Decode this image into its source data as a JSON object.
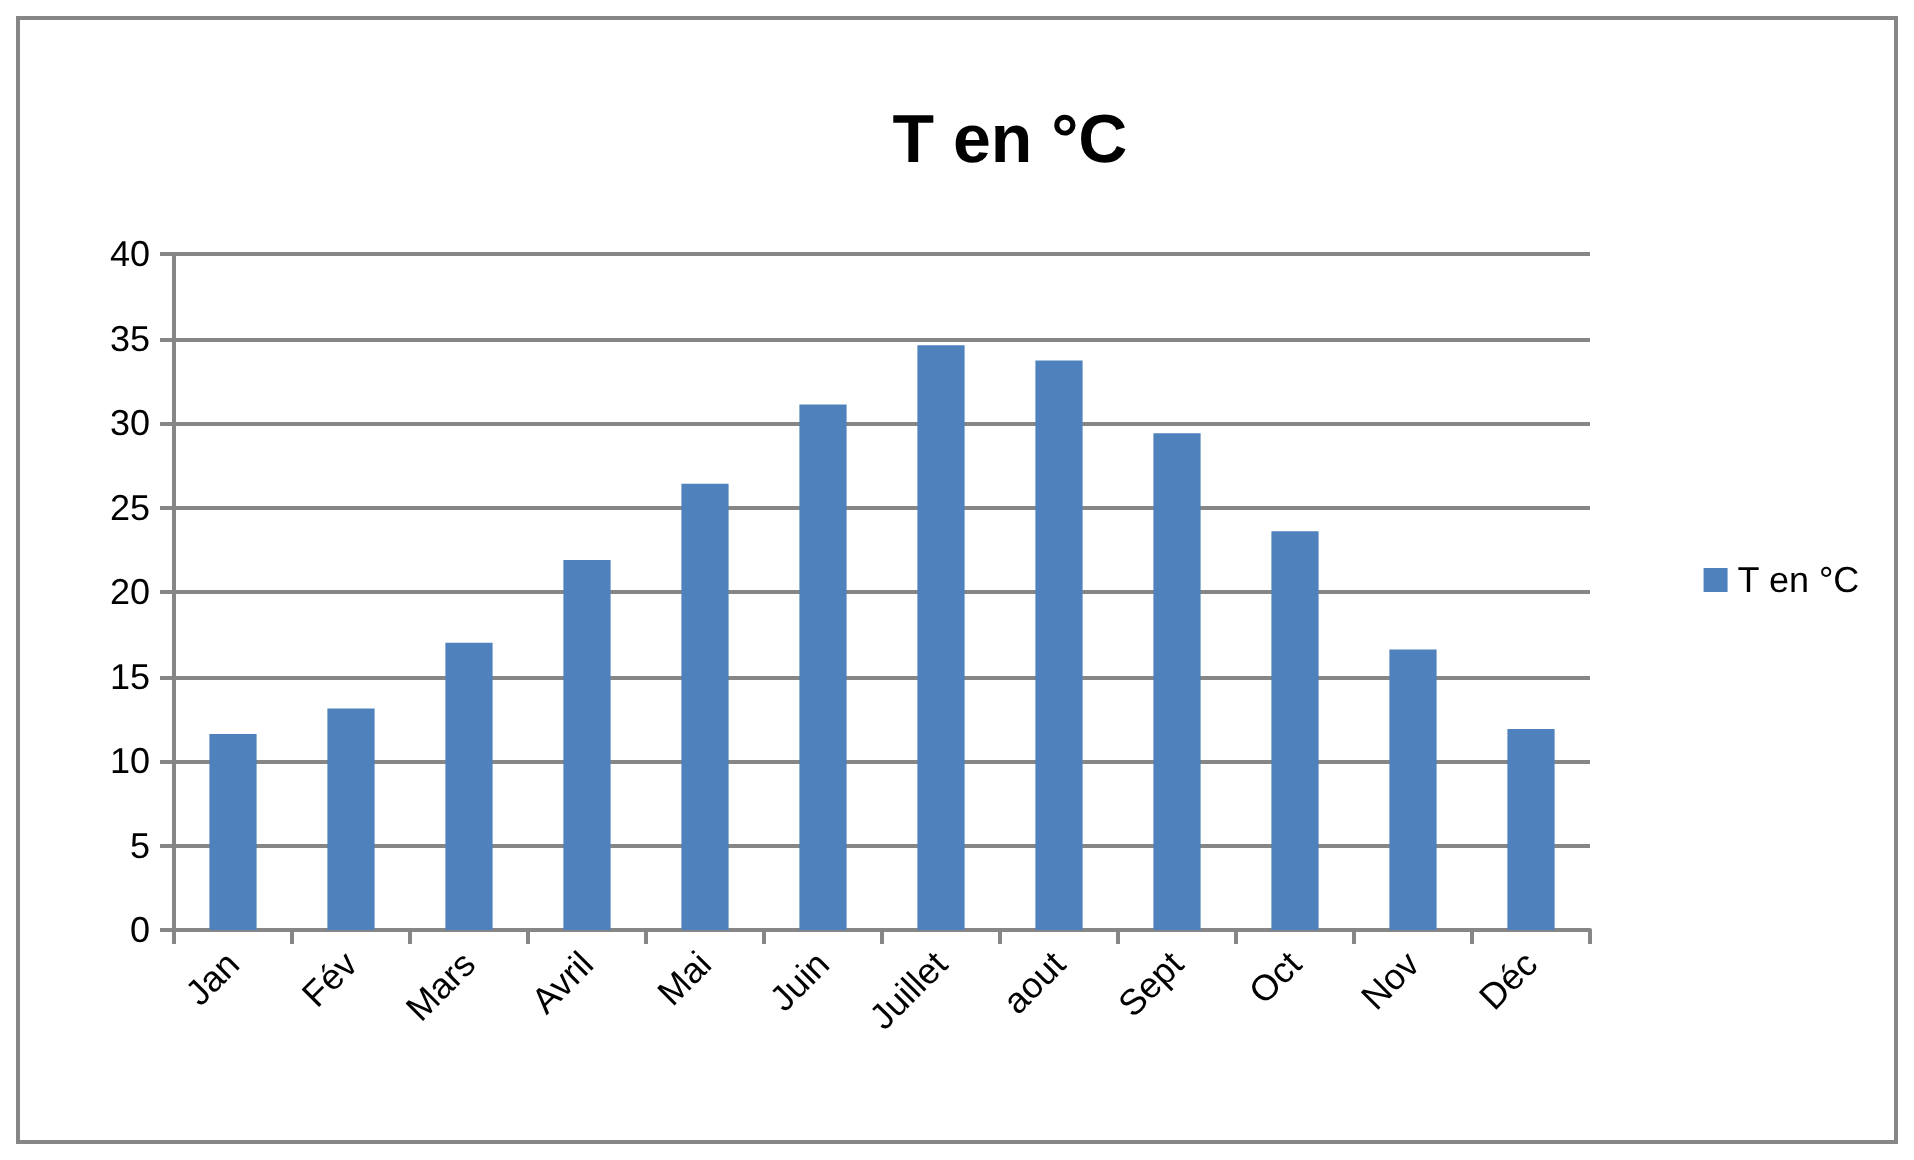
{
  "chart_data": {
    "type": "bar",
    "title": "T en °C",
    "categories": [
      "Jan",
      "Fév",
      "Mars",
      "Avril",
      "Mai",
      "Juin",
      "Juillet",
      "aout",
      "Sept",
      "Oct",
      "Nov",
      "Déc"
    ],
    "series": [
      {
        "name": "T en °C",
        "color": "#4f81bd",
        "values": [
          11.6,
          13.1,
          17.0,
          21.9,
          26.4,
          31.1,
          34.6,
          33.7,
          29.4,
          23.6,
          16.6,
          11.9
        ]
      }
    ],
    "ylim": [
      0,
      40
    ],
    "yticks": [
      0,
      5,
      10,
      15,
      20,
      25,
      30,
      35,
      40
    ],
    "grid": "y",
    "legend": "right"
  }
}
